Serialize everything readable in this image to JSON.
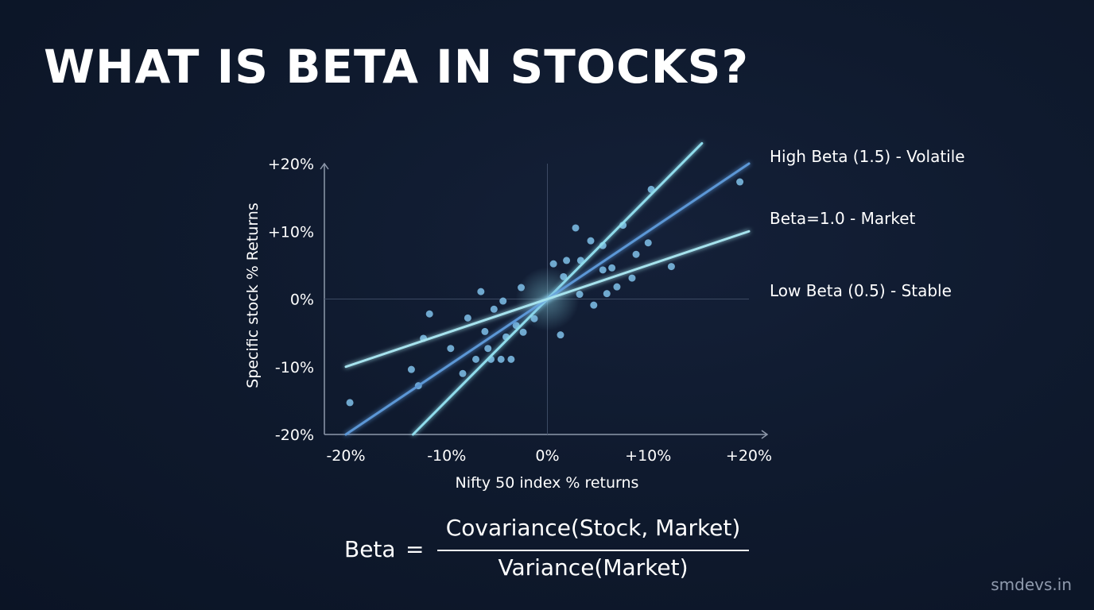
{
  "title": "WHAT IS BETA IN STOCKS?",
  "chart_data": {
    "type": "scatter",
    "xlabel": "Nifty 50 index % returns",
    "ylabel": "Specific stock % Returns",
    "xlim": [
      -20,
      20
    ],
    "ylim": [
      -20,
      20
    ],
    "x_ticks": [
      "-20%",
      "-10%",
      "0%",
      "+10%",
      "+20%"
    ],
    "y_ticks": [
      "+20%",
      "+10%",
      "0%",
      "-10%",
      "-20%"
    ],
    "grid": false,
    "lines": [
      {
        "name": "High Beta (1.5) - Volatile",
        "slope": 1.5,
        "x": [
          -18,
          20
        ],
        "color": "#8fdcec"
      },
      {
        "name": "Beta=1.0 - Market",
        "slope": 1.0,
        "x": [
          -20,
          20
        ],
        "color": "#5b97d6"
      },
      {
        "name": "Low Beta (0.5) - Stable",
        "slope": 0.5,
        "x": [
          -20,
          20
        ],
        "color": "#a6e3ee"
      }
    ],
    "points": [
      [
        -19.6,
        -15.3
      ],
      [
        -13.5,
        -10.4
      ],
      [
        -12.8,
        -12.8
      ],
      [
        -12.3,
        -5.8
      ],
      [
        -11.7,
        -2.2
      ],
      [
        -9.6,
        -7.3
      ],
      [
        -8.4,
        -11.0
      ],
      [
        -7.9,
        -2.8
      ],
      [
        -7.1,
        -8.9
      ],
      [
        -6.6,
        1.1
      ],
      [
        -6.2,
        -4.8
      ],
      [
        -5.9,
        -7.3
      ],
      [
        -5.6,
        -8.9
      ],
      [
        -5.3,
        -1.5
      ],
      [
        -4.6,
        -8.9
      ],
      [
        -4.4,
        -0.3
      ],
      [
        -4.1,
        -5.6
      ],
      [
        -3.6,
        -8.9
      ],
      [
        -3.1,
        -3.9
      ],
      [
        -2.6,
        1.7
      ],
      [
        -2.4,
        -4.9
      ],
      [
        -1.3,
        -2.9
      ],
      [
        0.6,
        5.2
      ],
      [
        1.3,
        -5.3
      ],
      [
        1.6,
        3.3
      ],
      [
        1.9,
        5.7
      ],
      [
        2.8,
        10.5
      ],
      [
        3.2,
        0.7
      ],
      [
        3.3,
        5.7
      ],
      [
        4.3,
        8.6
      ],
      [
        4.6,
        -0.9
      ],
      [
        5.5,
        7.9
      ],
      [
        5.5,
        4.3
      ],
      [
        5.9,
        0.8
      ],
      [
        6.4,
        4.6
      ],
      [
        6.9,
        1.8
      ],
      [
        7.5,
        10.9
      ],
      [
        8.4,
        3.1
      ],
      [
        8.8,
        6.6
      ],
      [
        10.0,
        8.3
      ],
      [
        10.3,
        16.2
      ],
      [
        12.3,
        4.8
      ],
      [
        19.1,
        17.3
      ]
    ]
  },
  "formula": {
    "lhs": "Beta",
    "equals": "=",
    "numerator": "Covariance(Stock, Market)",
    "denominator": "Variance(Market)"
  },
  "watermark": "smdevs.in",
  "colors": {
    "background": "#0f1a2e",
    "axis": "#8e99ab",
    "point": "#7ab8e0"
  }
}
